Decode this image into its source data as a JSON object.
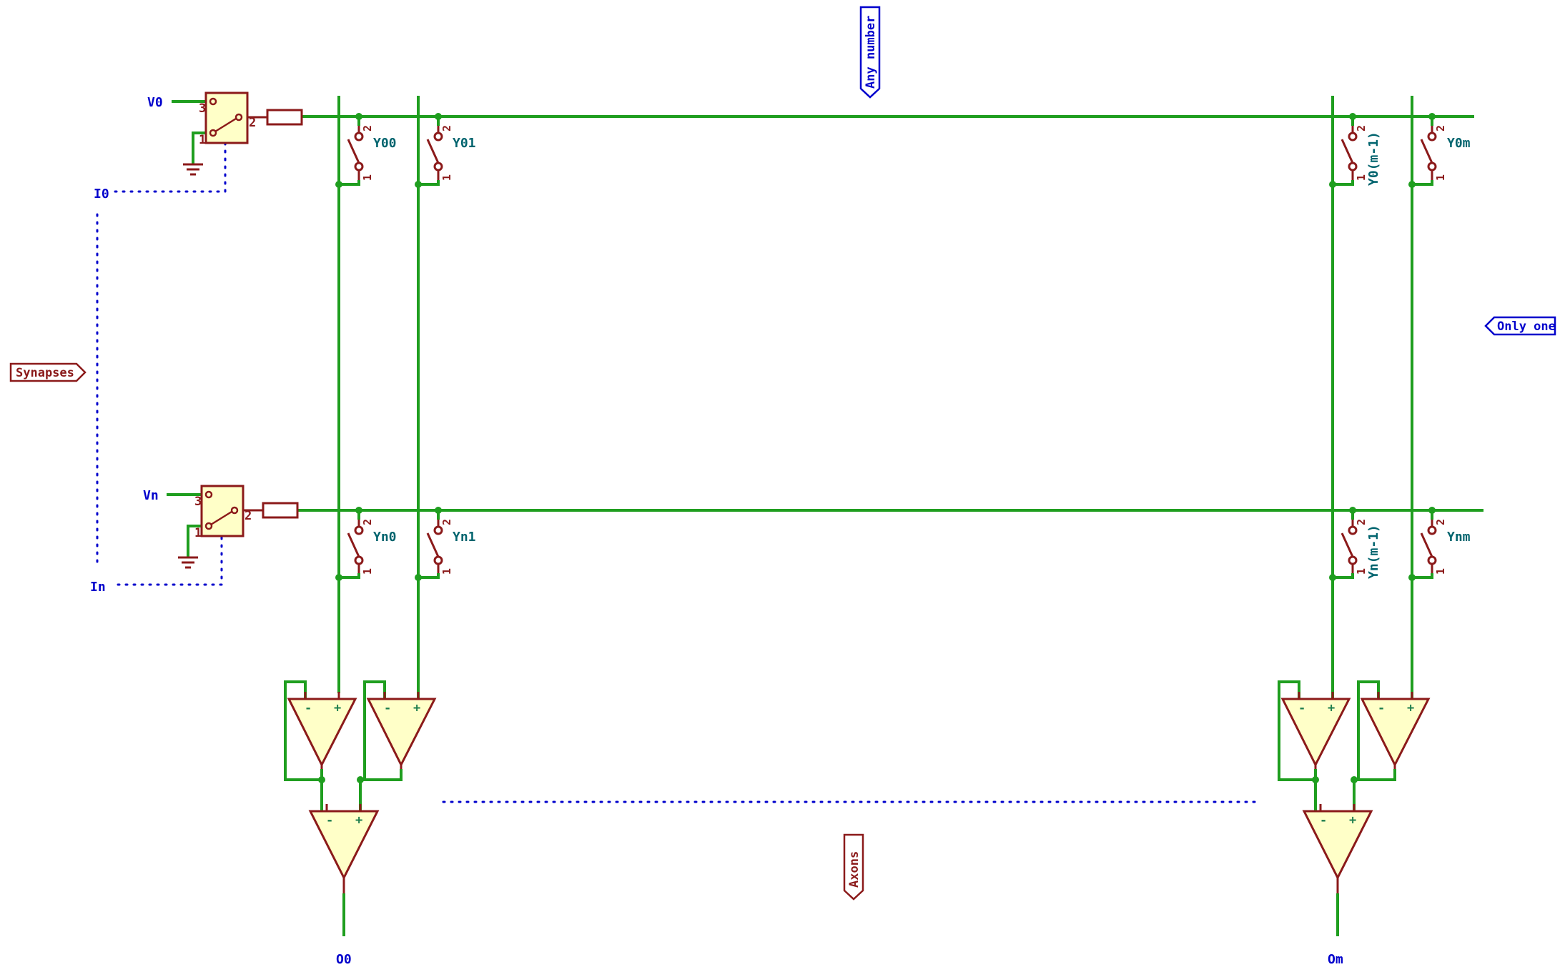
{
  "colors": {
    "wire": "#1f9e1f",
    "component": "#8b1a1a",
    "fill": "#ffffc8",
    "net_label": "#0000cc",
    "ref_label": "#00646e",
    "sheet_label": "#8b1a1a"
  },
  "labels": {
    "any_number": "Any number",
    "only_one": "Only one",
    "synapses": "Synapses",
    "axons": "Axons"
  },
  "inputs": {
    "v0": "V0",
    "vn": "Vn",
    "i0": "I0",
    "in": "In"
  },
  "outputs": {
    "o0": "O0",
    "om": "Om"
  },
  "switches": {
    "y00": "Y00",
    "y01": "Y01",
    "y0m1": "Y0(m-1)",
    "y0m": "Y0m",
    "yn0": "Yn0",
    "yn1": "Yn1",
    "ynm1": "Yn(m-1)",
    "ynm": "Ynm"
  },
  "pins": {
    "p1": "1",
    "p2": "2",
    "p3": "3",
    "minus": "-",
    "plus": "+"
  }
}
